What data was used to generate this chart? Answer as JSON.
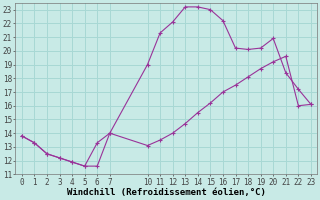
{
  "xlabel": "Windchill (Refroidissement éolien,°C)",
  "bg_color": "#c8eae6",
  "grid_color": "#a8d8d4",
  "line_color": "#993399",
  "marker": "+",
  "line1_x": [
    0,
    1,
    2,
    3,
    4,
    5,
    6,
    7,
    10,
    11,
    12,
    13,
    14,
    15,
    16,
    17,
    18,
    19,
    20,
    21,
    22,
    23
  ],
  "line1_y": [
    13.8,
    13.3,
    12.5,
    12.2,
    11.9,
    11.6,
    11.6,
    14.0,
    19.0,
    21.3,
    22.1,
    23.2,
    23.2,
    23.0,
    22.2,
    20.2,
    20.1,
    20.2,
    20.9,
    18.4,
    17.2,
    16.1
  ],
  "line2_x": [
    0,
    1,
    2,
    3,
    4,
    5,
    6,
    7,
    10,
    11,
    12,
    13,
    14,
    15,
    16,
    17,
    18,
    19,
    20,
    21,
    22,
    23
  ],
  "line2_y": [
    13.8,
    13.3,
    12.5,
    12.2,
    11.9,
    11.6,
    13.3,
    14.0,
    13.1,
    13.5,
    14.0,
    14.7,
    15.5,
    16.2,
    17.0,
    17.5,
    18.1,
    18.7,
    19.2,
    19.6,
    16.0,
    16.1
  ],
  "xlim": [
    -0.5,
    23.5
  ],
  "ylim": [
    11.0,
    23.5
  ],
  "xticks": [
    0,
    1,
    2,
    3,
    4,
    5,
    6,
    7,
    10,
    11,
    12,
    13,
    14,
    15,
    16,
    17,
    18,
    19,
    20,
    21,
    22,
    23
  ],
  "yticks": [
    11,
    12,
    13,
    14,
    15,
    16,
    17,
    18,
    19,
    20,
    21,
    22,
    23
  ],
  "tick_fontsize": 5.5,
  "xlabel_fontsize": 6.5
}
